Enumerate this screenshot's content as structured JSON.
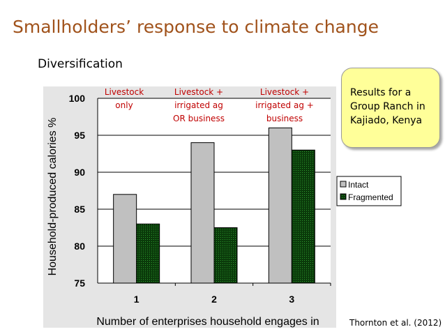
{
  "slide": {
    "title": "Smallholders’ response to climate change",
    "subtitle": "Diversification",
    "note": [
      "Results for a",
      "Group Ranch in",
      "Kajiado, Kenya"
    ],
    "citation": "Thornton et al. (2012)"
  },
  "chart_data": {
    "type": "bar",
    "categories": [
      "1",
      "2",
      "3"
    ],
    "series": [
      {
        "name": "Intact",
        "values": [
          87,
          94,
          96
        ],
        "color": "#c0c0c0"
      },
      {
        "name": "Fragmented",
        "values": [
          83,
          82.5,
          93
        ],
        "color": "#0a3a0a"
      }
    ],
    "xlabel": "Number of enterprises household engages in",
    "ylabel": "Household-produced calories %",
    "ylim": [
      75,
      100
    ],
    "yticks": [
      "75",
      "80",
      "85",
      "90",
      "95",
      "100"
    ],
    "grid": true,
    "legend_position": "right",
    "category_annotations": [
      [
        "Livestock",
        "only"
      ],
      [
        "Livestock +",
        "irrigated ag",
        "OR business"
      ],
      [
        "Livestock +",
        "irrigated ag +",
        "business"
      ]
    ],
    "annotation_color": "#c00000"
  }
}
